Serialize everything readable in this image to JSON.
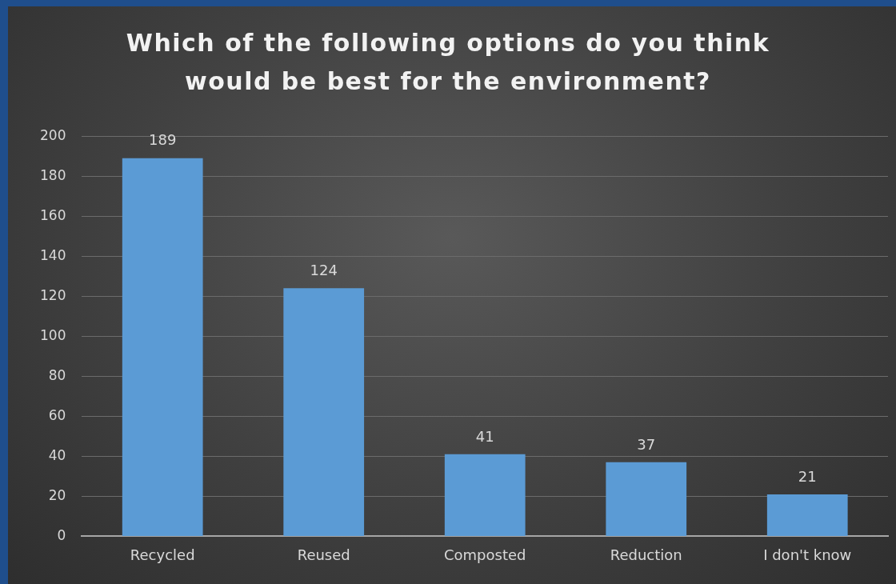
{
  "chart_data": {
    "type": "bar",
    "title": "Which of the following options do you think would be best for the environment?",
    "categories": [
      "Recycled",
      "Reused",
      "Composted",
      "Reduction",
      "I don't know"
    ],
    "values": [
      189,
      124,
      41,
      37,
      21
    ],
    "color": "#5b9bd5",
    "ylim": [
      0,
      200
    ],
    "yticks": [
      0,
      20,
      40,
      60,
      80,
      100,
      120,
      140,
      160,
      180,
      200
    ],
    "grid": "y",
    "data_labels": true
  }
}
